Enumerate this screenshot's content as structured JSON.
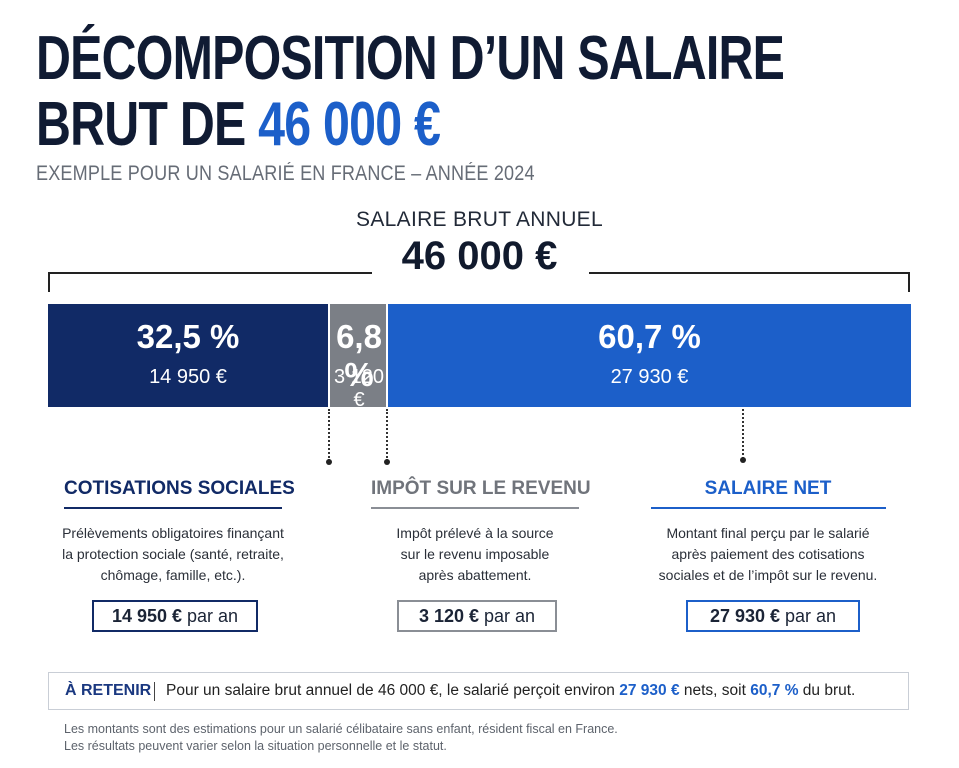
{
  "header": {
    "title_line1": "DÉCOMPOSITION D’UN SALAIRE",
    "title_line2_prefix": "BRUT DE ",
    "title_line2_amount": "46 000 €",
    "subtitle": "EXEMPLE POUR UN SALARIÉ EN FRANCE – ANNÉE 2024"
  },
  "total": {
    "label": "SALAIRE BRUT ANNUEL",
    "value": "46 000 €"
  },
  "chart_data": {
    "type": "bar",
    "orientation": "stacked-horizontal",
    "total": 46000,
    "categories": [
      "COTISATIONS SOCIALES",
      "IMPÔT SUR LE REVENU",
      "SALAIRE NET"
    ],
    "values": [
      14950,
      3120,
      27930
    ],
    "percent": [
      32.5,
      6.8,
      60.7
    ],
    "pct_labels": [
      "32,5 %",
      "6,8 %",
      "60,7 %"
    ],
    "value_labels": [
      "14 950 €",
      "3 120 €",
      "27 930 €"
    ],
    "colors": [
      "#112a66",
      "#7b7f86",
      "#1c5fc9"
    ]
  },
  "columns": [
    {
      "title": "COTISATIONS SOCIALES",
      "title_color": "#112a66",
      "desc": [
        "Prélèvements obligatoires finançant",
        "la protection sociale (santé, retraite,",
        "chômage, famille, etc.)."
      ],
      "amount": "14 950 €",
      "amount_suffix": " par an",
      "border_color": "#112a66"
    },
    {
      "title": "IMPÔT SUR LE REVENU",
      "title_color": "#70747b",
      "desc": [
        "Impôt prélevé à la source",
        "sur le revenu imposable",
        "après abattement."
      ],
      "amount": "3 120 €",
      "amount_suffix": " par an",
      "border_color": "#8a8e95"
    },
    {
      "title": "SALAIRE NET",
      "title_color": "#1c5fc9",
      "desc": [
        "Montant final perçu par le salarié",
        "après paiement des cotisations",
        "sociales et de l’impôt sur le revenu."
      ],
      "amount": "27 930 €",
      "amount_suffix": " par an",
      "border_color": "#1c5fc9"
    }
  ],
  "retenir": {
    "tag": "À RETENIR",
    "text_before": "Pour un salaire brut annuel de 46 000 €, le salarié perçoit environ ",
    "net_amount": "27 930 €",
    "text_middle": " nets, soit ",
    "net_pct": "60,7 %",
    "text_after": " du brut."
  },
  "footnotes": [
    "Les montants sont des estimations pour un salarié célibataire sans enfant, résident fiscal en France.",
    "Les résultats peuvent varier selon la situation personnelle et le statut."
  ]
}
